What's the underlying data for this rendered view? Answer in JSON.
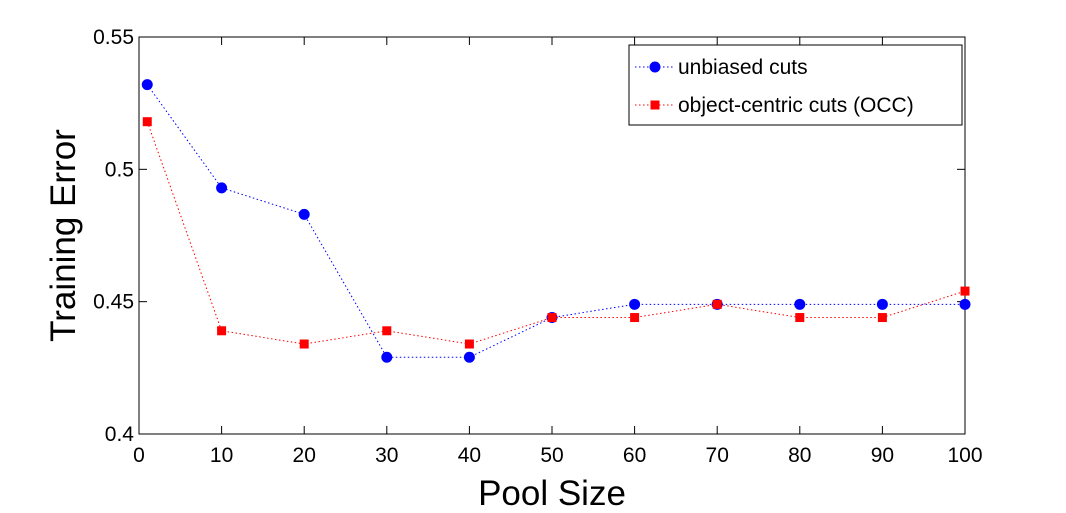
{
  "chart_data": {
    "type": "line",
    "xlabel": "Pool Size",
    "ylabel": "Training Error",
    "xlim": [
      0,
      100
    ],
    "ylim": [
      0.4,
      0.55
    ],
    "xticks": [
      0,
      10,
      20,
      30,
      40,
      50,
      60,
      70,
      80,
      90,
      100
    ],
    "yticks": [
      0.4,
      0.45,
      0.5,
      0.55
    ],
    "xtick_labels": [
      "0",
      "10",
      "20",
      "30",
      "40",
      "50",
      "60",
      "70",
      "80",
      "90",
      "100"
    ],
    "ytick_labels": [
      "0.4",
      "0.45",
      "0.5",
      "0.55"
    ],
    "grid": false,
    "legend_position": "top-right",
    "x": [
      1,
      10,
      20,
      30,
      40,
      50,
      60,
      70,
      80,
      90,
      100
    ],
    "series": [
      {
        "name": "unbiased cuts",
        "color": "#0000ff",
        "marker": "circle",
        "line_style": "dotted",
        "values": [
          0.532,
          0.493,
          0.483,
          0.429,
          0.429,
          0.444,
          0.449,
          0.449,
          0.449,
          0.449,
          0.449
        ]
      },
      {
        "name": "object-centric cuts (OCC)",
        "color": "#ff0000",
        "marker": "square",
        "line_style": "dotted",
        "values": [
          0.518,
          0.439,
          0.434,
          0.439,
          0.434,
          0.444,
          0.444,
          0.449,
          0.444,
          0.444,
          0.454
        ]
      }
    ]
  }
}
